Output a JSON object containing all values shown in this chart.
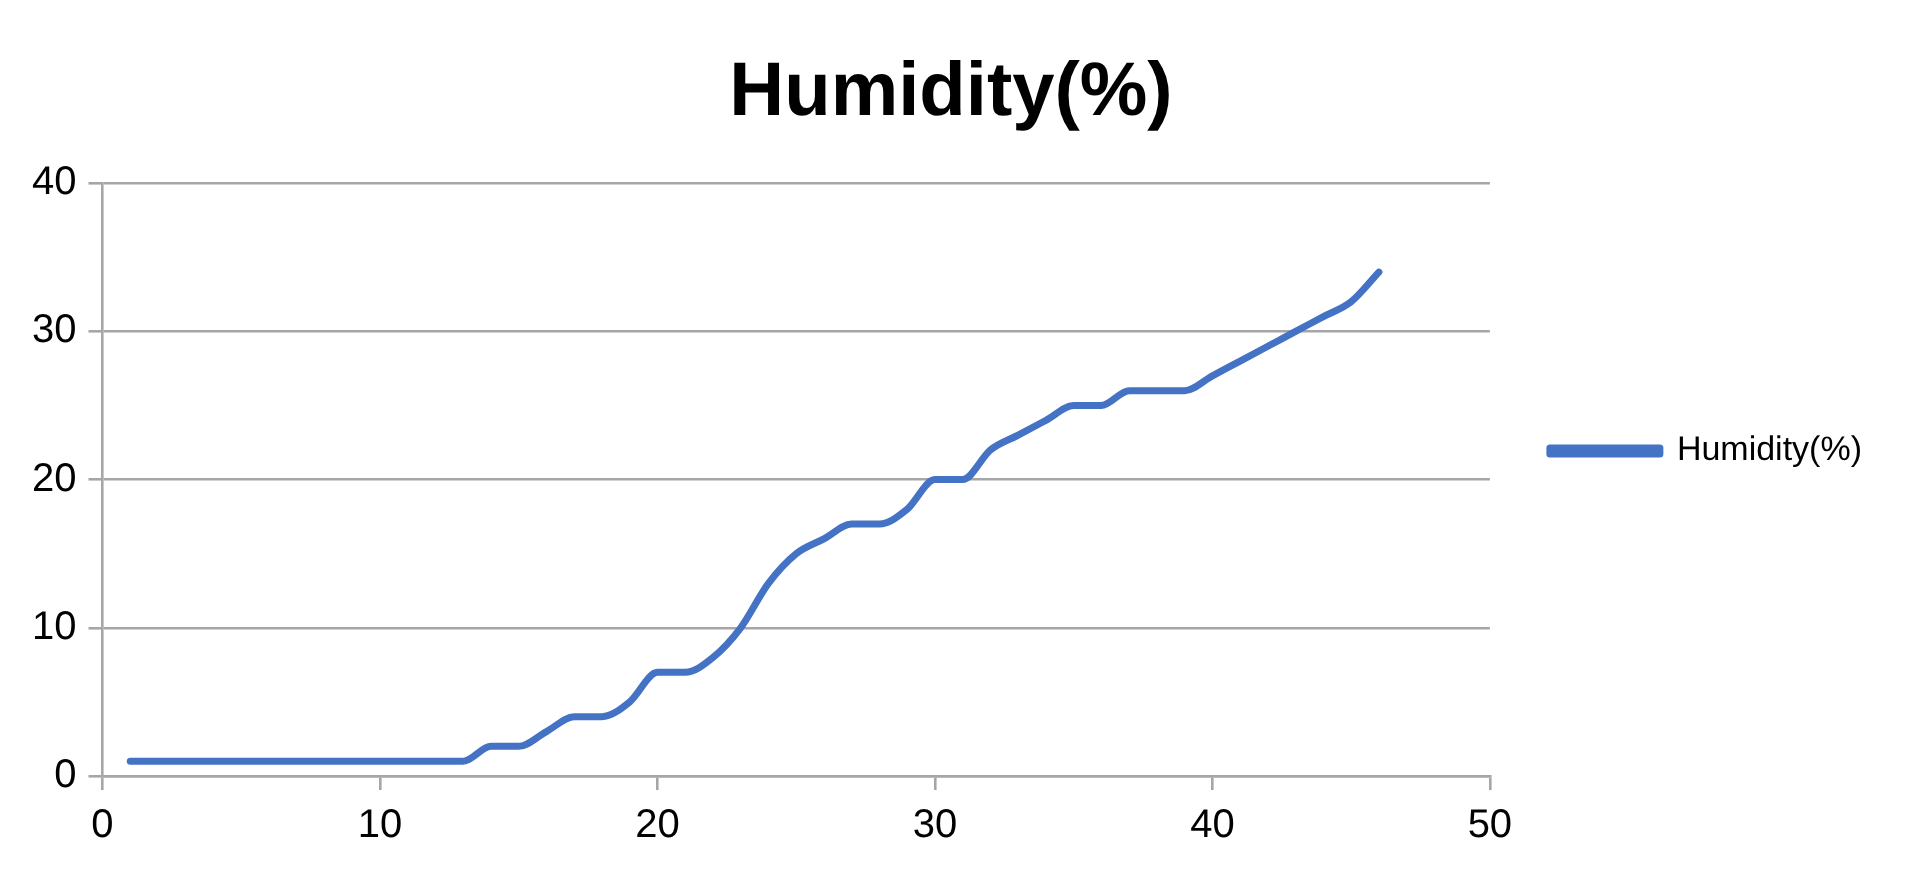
{
  "chart_data": {
    "type": "line",
    "title": "Humidity(%)",
    "x": [
      1,
      2,
      3,
      4,
      5,
      6,
      7,
      8,
      9,
      10,
      11,
      12,
      13,
      14,
      15,
      16,
      17,
      18,
      19,
      20,
      21,
      22,
      23,
      24,
      25,
      26,
      27,
      28,
      29,
      30,
      31,
      32,
      33,
      34,
      35,
      36,
      37,
      38,
      39,
      40,
      41,
      42,
      43,
      44,
      45,
      46
    ],
    "series": [
      {
        "name": "Humidity(%)",
        "color": "#4472c4",
        "values": [
          1,
          1,
          1,
          1,
          1,
          1,
          1,
          1,
          1,
          1,
          1,
          1,
          1,
          2,
          2,
          3,
          4,
          4,
          5,
          7,
          7,
          8,
          10,
          13,
          15,
          16,
          17,
          17,
          18,
          20,
          20,
          22,
          23,
          24,
          25,
          25,
          26,
          26,
          26,
          27,
          28,
          29,
          30,
          31,
          32,
          34
        ]
      }
    ],
    "xlim": [
      0,
      50
    ],
    "xticks": [
      0,
      10,
      20,
      30,
      40,
      50
    ],
    "ylim": [
      0,
      40
    ],
    "yticks": [
      0,
      10,
      20,
      30,
      40
    ],
    "grid": "y",
    "legend": "right",
    "marker": "none",
    "line_style": "solid"
  }
}
